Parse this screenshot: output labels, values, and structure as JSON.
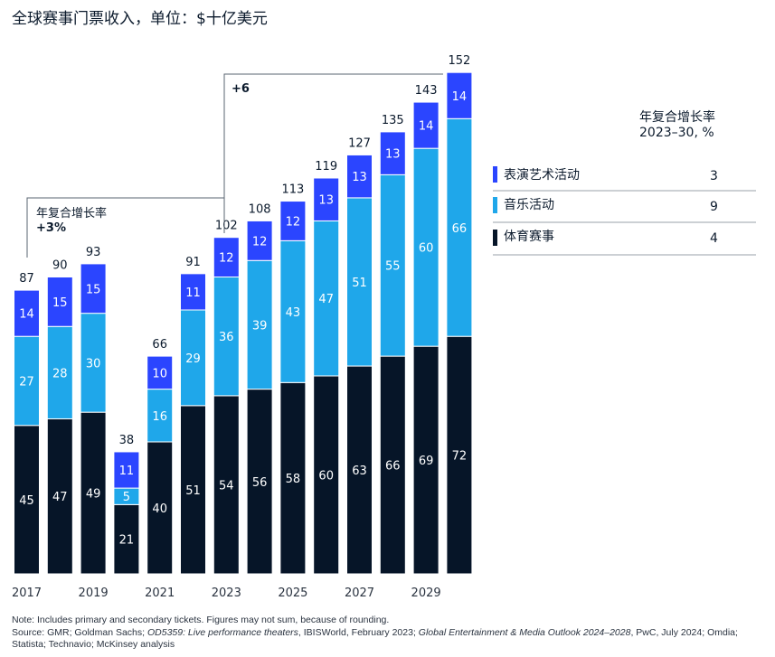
{
  "title": "全球赛事门票收入，单位：$十亿美元",
  "colors": {
    "performing_arts": "#2b45ff",
    "music": "#1fa7ea",
    "sports": "#061528",
    "text": "#0b1a2c"
  },
  "chart_data": {
    "type": "bar",
    "stacked": true,
    "categories": [
      "2017",
      "2018",
      "2019",
      "2020",
      "2021",
      "2022",
      "2023",
      "2024",
      "2025",
      "2026",
      "2027",
      "2028",
      "2029",
      "2030"
    ],
    "tick_labels": [
      "2017",
      "2019",
      "2021",
      "2023",
      "2025",
      "2027",
      "2029"
    ],
    "series": [
      {
        "name": "体育赛事",
        "color": "#061528",
        "values": [
          45,
          47,
          49,
          21,
          40,
          51,
          54,
          56,
          58,
          60,
          63,
          66,
          69,
          72
        ]
      },
      {
        "name": "音乐活动",
        "color": "#1fa7ea",
        "values": [
          27,
          28,
          30,
          5,
          16,
          29,
          36,
          39,
          43,
          47,
          51,
          55,
          60,
          66
        ]
      },
      {
        "name": "表演艺术活动",
        "color": "#2b45ff",
        "values": [
          14,
          15,
          15,
          11,
          10,
          11,
          12,
          12,
          12,
          13,
          13,
          13,
          14,
          14
        ]
      }
    ],
    "totals": [
      87,
      90,
      93,
      38,
      66,
      91,
      102,
      108,
      113,
      119,
      127,
      135,
      143,
      152
    ],
    "ylim": [
      0,
      160
    ],
    "grid": false,
    "annotations": {
      "cagr_left_title": "年复合增长率",
      "cagr_left_value": "+3%",
      "cagr_right_value": "+6"
    },
    "legend": {
      "placement": "right",
      "header_line1": "年复合增长率",
      "header_line2": "2023–30, %",
      "items": [
        {
          "name": "表演艺术活动",
          "value": "3",
          "color": "#2b45ff"
        },
        {
          "name": "音乐活动",
          "value": "9",
          "color": "#1fa7ea"
        },
        {
          "name": "体育赛事",
          "value": "4",
          "color": "#061528"
        }
      ]
    }
  },
  "note": {
    "line1": "Note: Includes primary and secondary tickets. Figures may not sum, because of rounding.",
    "source_a": "Source: GMR; Goldman Sachs; ",
    "source_b": "OD5359: Live performance theaters",
    "source_c": ", IBISWorld, February 2023; ",
    "source_d": "Global Entertainment & Media Outlook 2024–2028",
    "source_e": ", PwC, July 2024; Omdia; Statista; Technavio; McKinsey analysis"
  }
}
